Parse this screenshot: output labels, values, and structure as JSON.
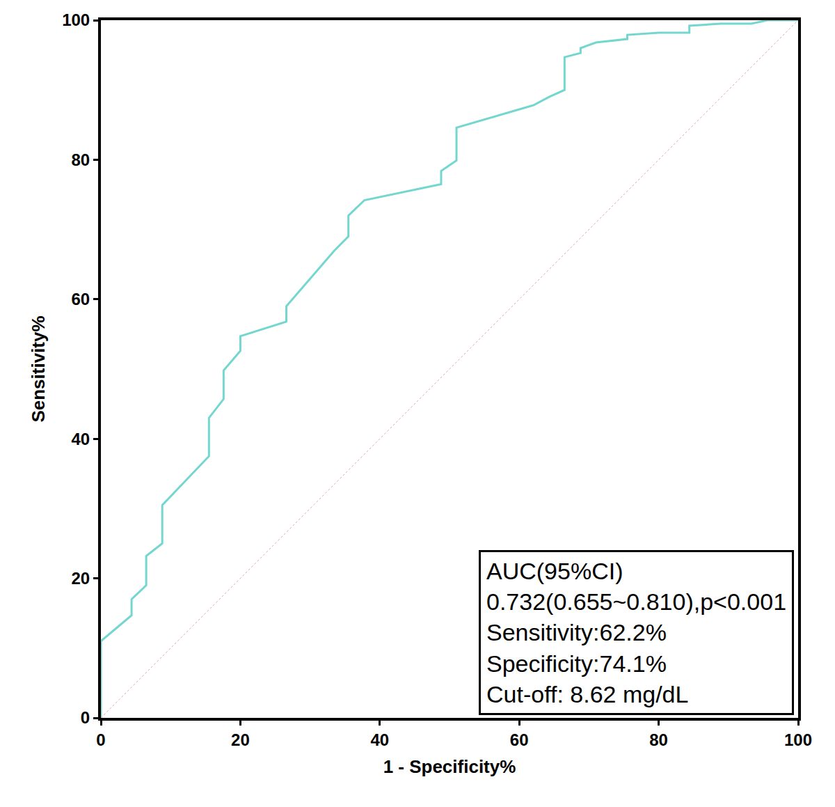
{
  "chart_data": {
    "type": "line",
    "x_label": "1 - Specificity%",
    "y_label": "Sensitivity%",
    "xlim": [
      0,
      100
    ],
    "ylim": [
      0,
      100
    ],
    "xticks": [
      0,
      20,
      40,
      60,
      80,
      100
    ],
    "yticks": [
      0,
      20,
      40,
      60,
      80,
      100
    ],
    "grid": false,
    "series": [
      {
        "color": "#74d7cf",
        "line_style": "solid",
        "x": [
          0,
          0,
          4.4,
          4.4,
          6.5,
          6.5,
          8.8,
          8.8,
          15.5,
          15.5,
          17.6,
          17.6,
          20,
          20,
          26.6,
          26.6,
          33.5,
          35.5,
          35.5,
          37.8,
          48.8,
          48.8,
          51,
          51,
          62,
          64.3,
          66.5,
          66.5,
          68.8,
          68.8,
          71,
          75.5,
          75.5,
          80,
          84.4,
          84.4,
          88.9,
          93.3,
          95.6,
          100
        ],
        "values": [
          0,
          11,
          14.7,
          17,
          19,
          23.2,
          25,
          30.5,
          37.5,
          43,
          45.7,
          49.8,
          52.6,
          54.7,
          56.8,
          59,
          67,
          69,
          72,
          74.2,
          76.5,
          78.4,
          79.9,
          84.6,
          87.8,
          89,
          90,
          94.7,
          95.3,
          96,
          96.8,
          97.3,
          97.9,
          98.2,
          98.2,
          99.2,
          99.5,
          99.5,
          100,
          100
        ]
      },
      {
        "color": "#f4a3a3",
        "line_style": "dot",
        "x": [
          0,
          100
        ],
        "values": [
          0,
          100
        ]
      }
    ],
    "annotations": [
      "AUC(95%CI)",
      "0.732(0.655~0.810),p<0.001",
      "Sensitivity:62.2%",
      "Specificity:74.1%",
      "Cut-off: 8.62 mg/dL"
    ]
  }
}
